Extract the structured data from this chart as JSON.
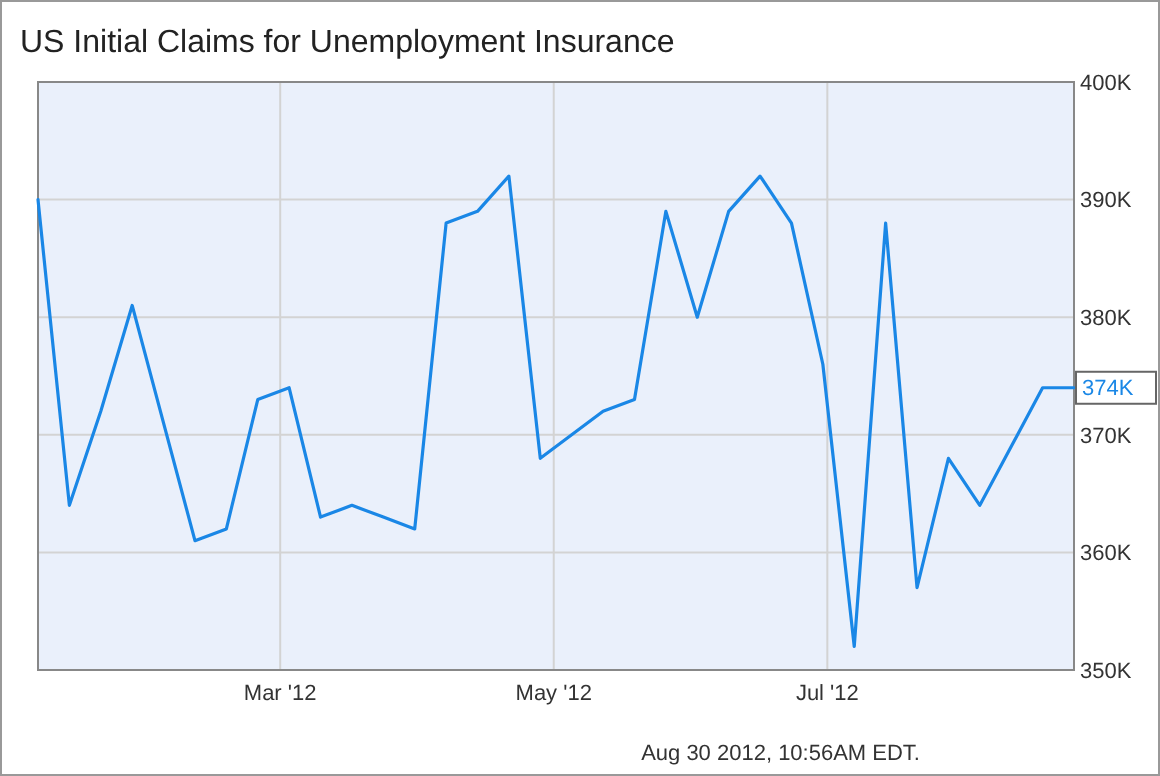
{
  "chart_data": {
    "type": "line",
    "title": "US Initial Claims for Unemployment Insurance",
    "x": [
      "2012-01-07",
      "2012-01-14",
      "2012-01-21",
      "2012-01-28",
      "2012-02-04",
      "2012-02-11",
      "2012-02-18",
      "2012-02-25",
      "2012-03-03",
      "2012-03-10",
      "2012-03-17",
      "2012-03-24",
      "2012-03-31",
      "2012-04-07",
      "2012-04-14",
      "2012-04-21",
      "2012-04-28",
      "2012-05-05",
      "2012-05-12",
      "2012-05-19",
      "2012-05-26",
      "2012-06-02",
      "2012-06-09",
      "2012-06-16",
      "2012-06-23",
      "2012-06-30",
      "2012-07-07",
      "2012-07-14",
      "2012-07-21",
      "2012-07-28",
      "2012-08-04",
      "2012-08-11",
      "2012-08-18",
      "2012-08-25"
    ],
    "series": [
      {
        "color": "#1a87e6",
        "values": [
          390,
          364,
          372,
          381,
          371,
          361,
          362,
          373,
          374,
          363,
          364,
          363,
          362,
          388,
          389,
          392,
          368,
          370,
          372,
          373,
          389,
          380,
          389,
          392,
          388,
          376,
          352,
          388,
          357,
          368,
          364,
          369,
          374,
          374
        ]
      }
    ],
    "xlim": [
      "2012-01-07",
      "2012-08-25"
    ],
    "xticks": [
      {
        "value": "2012-03-01",
        "label": "Mar '12"
      },
      {
        "value": "2012-05-01",
        "label": "May '12"
      },
      {
        "value": "2012-07-01",
        "label": "Jul '12"
      }
    ],
    "ylim": [
      350,
      400
    ],
    "yticks": [
      {
        "value": 350,
        "label": "350K"
      },
      {
        "value": 360,
        "label": "360K"
      },
      {
        "value": 370,
        "label": "370K"
      },
      {
        "value": 380,
        "label": "380K"
      },
      {
        "value": 390,
        "label": "390K"
      },
      {
        "value": 400,
        "label": "400K"
      }
    ],
    "grid": true,
    "marker": "none",
    "line_style": "solid",
    "annotations": [
      {
        "text": "374K",
        "x": "2012-08-25",
        "y": 374
      },
      "Aug 30 2012, 10:56AM EDT."
    ]
  }
}
